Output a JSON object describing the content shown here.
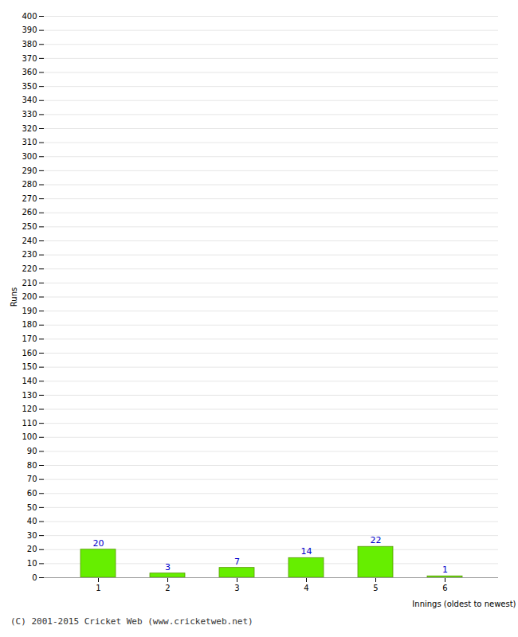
{
  "chart_data": {
    "type": "bar",
    "xlabel": "Innings (oldest to newest)",
    "ylabel": "Runs",
    "categories": [
      1,
      2,
      3,
      4,
      5,
      6
    ],
    "values": [
      20,
      3,
      7,
      14,
      22,
      1
    ],
    "color": "#66ee00",
    "ylim": [
      0,
      400
    ],
    "yticks": [
      0,
      10,
      20,
      30,
      40,
      50,
      60,
      70,
      80,
      90,
      100,
      110,
      120,
      130,
      140,
      150,
      160,
      170,
      180,
      190,
      200,
      210,
      220,
      230,
      240,
      250,
      260,
      270,
      280,
      290,
      300,
      310,
      320,
      330,
      340,
      350,
      360,
      370,
      380,
      390,
      400
    ],
    "grid": true,
    "data_labels": true,
    "annotations": [
      "(C) 2001-2015 Cricket Web (www.cricketweb.net)"
    ]
  }
}
